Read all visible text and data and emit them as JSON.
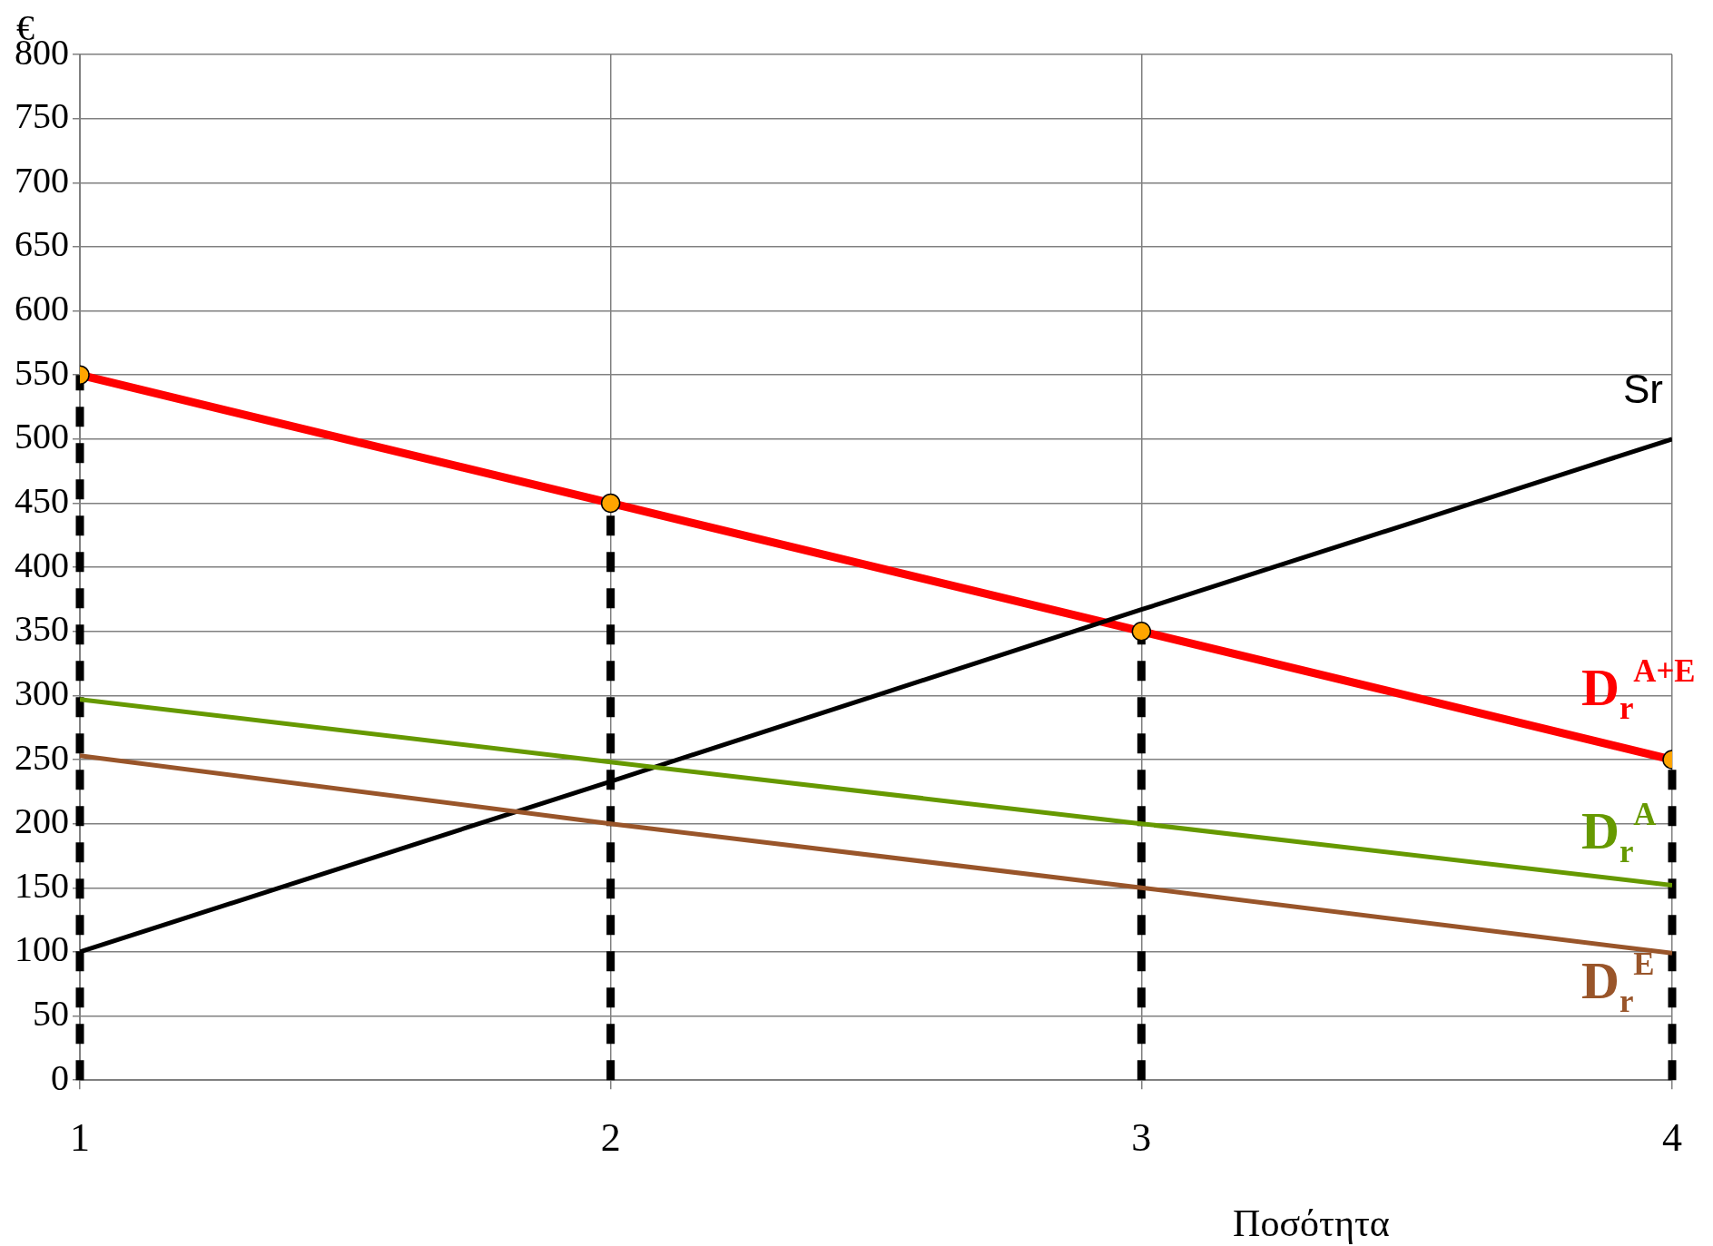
{
  "chart_data": {
    "type": "line",
    "xlabel": "Ποσότητα",
    "ylabel": "€",
    "x": [
      1,
      2,
      3,
      4
    ],
    "series": [
      {
        "name": "D$_{r}$$^{A+E}$",
        "color": "#ff0000",
        "values": [
          550,
          450,
          350,
          250
        ],
        "marker": "circle",
        "colors": [
          "#ffa500",
          "#ffa500",
          "#ffa500",
          "#ffa500"
        ]
      },
      {
        "name": "Sr",
        "color": "#000000",
        "values": [
          100,
          233,
          367,
          500
        ]
      },
      {
        "name": "D$_{r}$$^{A}$",
        "color": "#669900",
        "values": [
          297,
          248,
          200,
          152
        ]
      },
      {
        "name": "D$_{r}$$^{E}$",
        "color": "#99552a",
        "values": [
          253,
          200,
          150,
          99
        ]
      }
    ],
    "xlim": [
      1,
      4
    ],
    "xticks": [
      1,
      2,
      3,
      4
    ],
    "ylim": [
      0,
      800
    ],
    "yticks": [
      0,
      50,
      100,
      150,
      200,
      250,
      300,
      350,
      400,
      450,
      500,
      550,
      600,
      650,
      700,
      750,
      800
    ],
    "ref_lines": [
      {
        "axis": "x",
        "value": 1,
        "color": "#000000",
        "line_style": "dashed"
      },
      {
        "axis": "x",
        "value": 2,
        "color": "#000000",
        "line_style": "dashed"
      },
      {
        "axis": "x",
        "value": 3,
        "color": "#000000",
        "line_style": "dashed"
      },
      {
        "axis": "x",
        "value": 4,
        "color": "#000000",
        "line_style": "dashed"
      }
    ],
    "grid": true,
    "legend": false
  }
}
